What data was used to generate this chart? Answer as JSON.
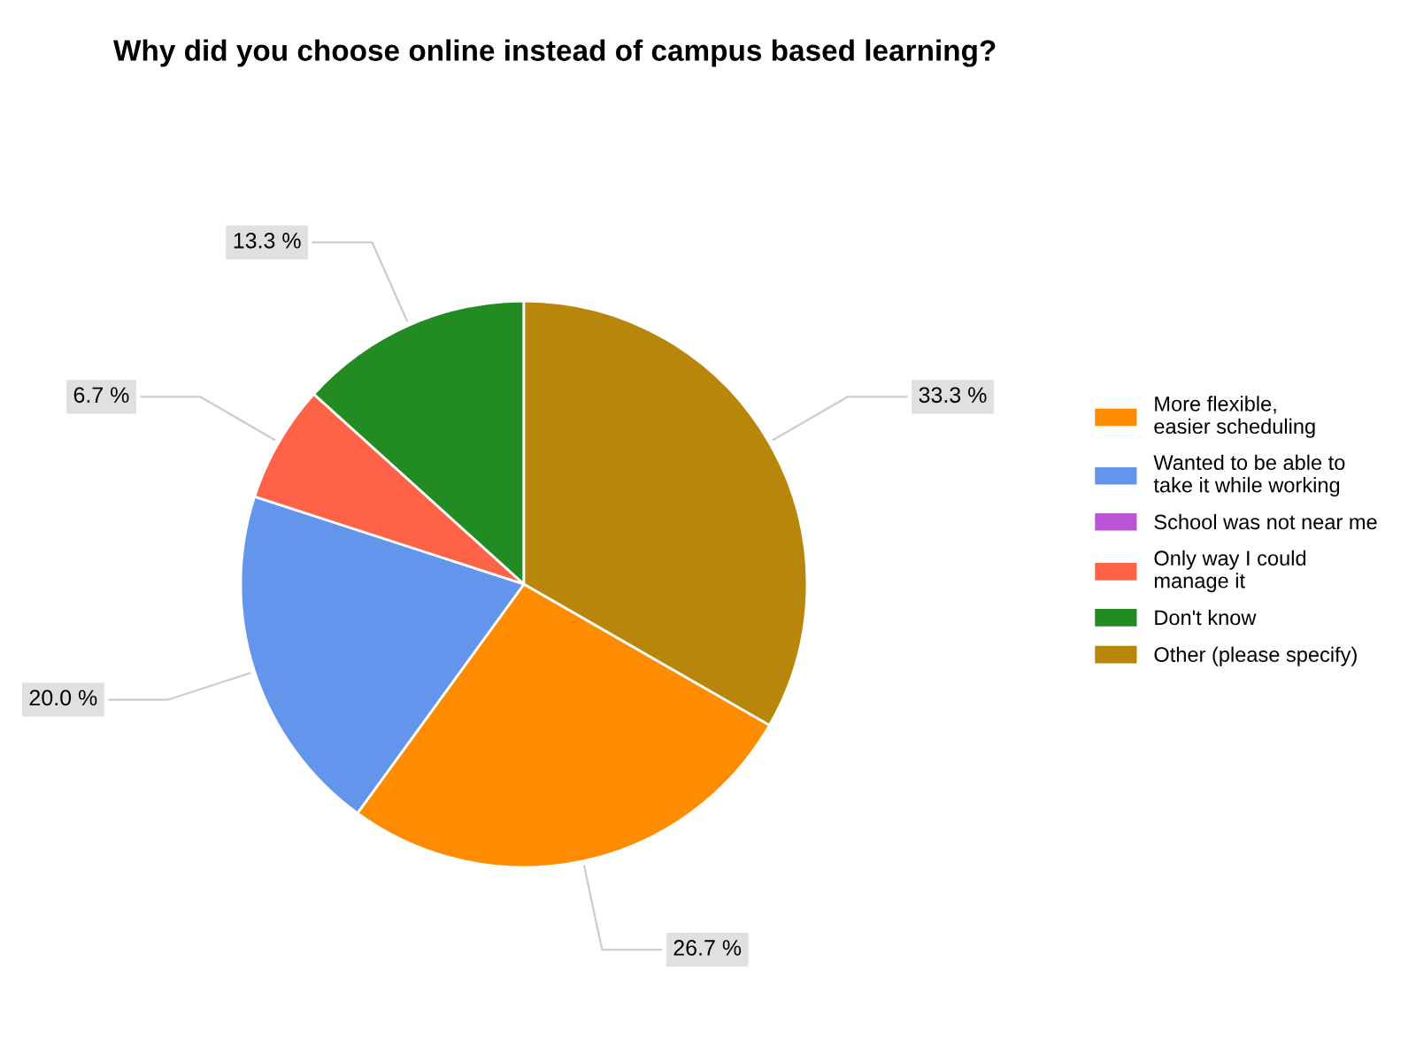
{
  "chart_data": {
    "type": "pie",
    "title": "Why did you choose online instead of campus based learning?",
    "categories": [
      "More flexible,\neasier scheduling",
      "Wanted to be able to\ntake it while working",
      "School was not near me",
      "Only way I could\nmanage it",
      "Don't know",
      "Other (please specify)"
    ],
    "values": [
      26.7,
      20.0,
      0,
      6.7,
      13.3,
      33.3
    ],
    "colors": [
      "#ff8c00",
      "#6495ed",
      "#ba55d3",
      "#ff6347",
      "#228b22",
      "#b8860b"
    ],
    "value_labels": [
      "26.7 %",
      "20.0 %",
      null,
      "6.7 %",
      "13.3 %",
      "33.3 %"
    ],
    "legend": "right"
  }
}
